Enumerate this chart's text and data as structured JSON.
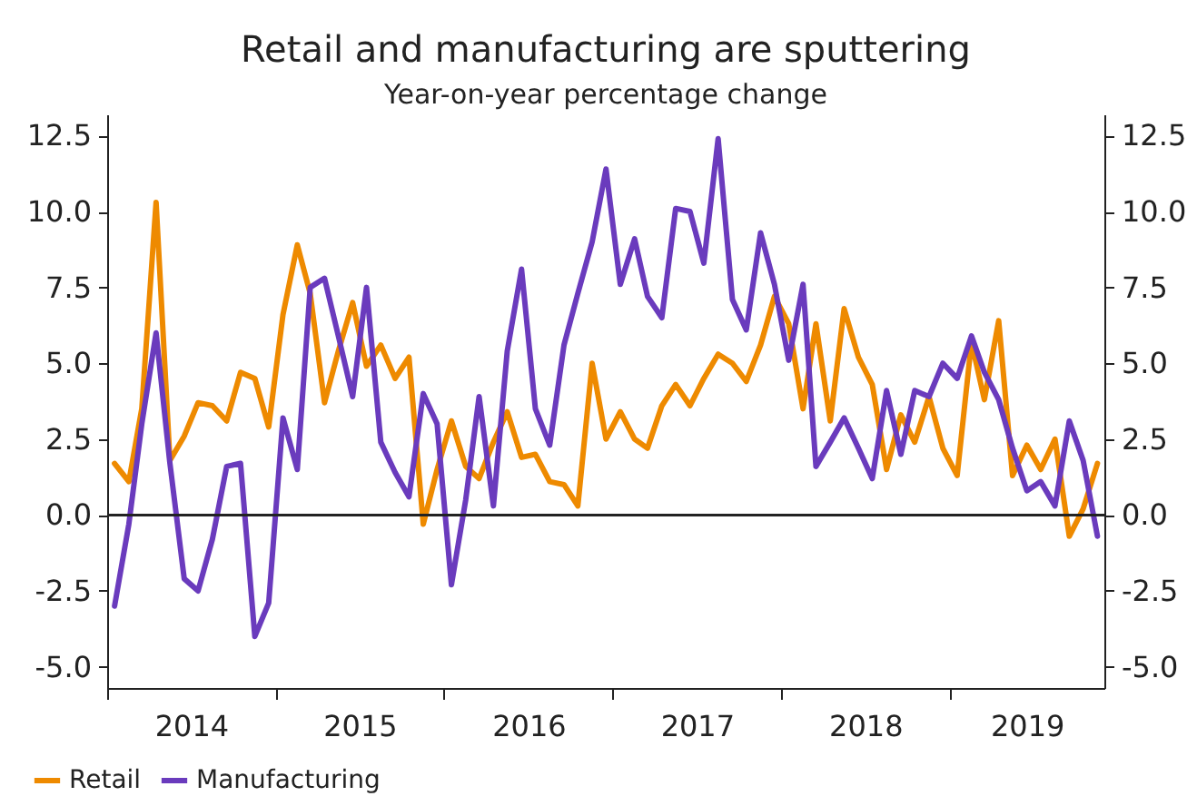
{
  "chart_data": {
    "type": "line",
    "title": "Retail and manufacturing are sputtering",
    "subtitle": "Year-on-year percentage change",
    "x": [
      "2014-01",
      "2014-02",
      "2014-03",
      "2014-04",
      "2014-05",
      "2014-06",
      "2014-07",
      "2014-08",
      "2014-09",
      "2014-10",
      "2014-11",
      "2014-12",
      "2015-01",
      "2015-02",
      "2015-03",
      "2015-04",
      "2015-05",
      "2015-06",
      "2015-07",
      "2015-08",
      "2015-09",
      "2015-10",
      "2015-11",
      "2015-12",
      "2016-01",
      "2016-02",
      "2016-03",
      "2016-04",
      "2016-05",
      "2016-06",
      "2016-07",
      "2016-08",
      "2016-09",
      "2016-10",
      "2016-11",
      "2016-12",
      "2017-01",
      "2017-02",
      "2017-03",
      "2017-04",
      "2017-05",
      "2017-06",
      "2017-07",
      "2017-08",
      "2017-09",
      "2017-10",
      "2017-11",
      "2017-12",
      "2018-01",
      "2018-02",
      "2018-03",
      "2018-04",
      "2018-05",
      "2018-06",
      "2018-07",
      "2018-08",
      "2018-09",
      "2018-10",
      "2018-11",
      "2018-12",
      "2019-01",
      "2019-02",
      "2019-03",
      "2019-04",
      "2019-05",
      "2019-06",
      "2019-07",
      "2019-08",
      "2019-09",
      "2019-10",
      "2019-11"
    ],
    "series": [
      {
        "name": "Retail",
        "color": "#ee8a00",
        "values": [
          1.7,
          1.1,
          3.5,
          10.3,
          1.8,
          2.6,
          3.7,
          3.6,
          3.1,
          4.7,
          4.5,
          2.9,
          6.6,
          8.9,
          7.3,
          3.7,
          5.4,
          7.0,
          4.9,
          5.6,
          4.5,
          5.2,
          -0.3,
          1.5,
          3.1,
          1.6,
          1.2,
          2.4,
          3.4,
          1.9,
          2.0,
          1.1,
          1.0,
          0.3,
          5.0,
          2.5,
          3.4,
          2.5,
          2.2,
          3.6,
          4.3,
          3.6,
          4.5,
          5.3,
          5.0,
          4.4,
          5.6,
          7.2,
          6.3,
          3.5,
          6.3,
          3.1,
          6.8,
          5.2,
          4.3,
          1.5,
          3.3,
          2.4,
          3.9,
          2.2,
          1.3,
          5.7,
          3.8,
          6.4,
          1.3,
          2.3,
          1.5,
          2.5,
          -0.7,
          0.2,
          1.7
        ]
      },
      {
        "name": "Manufacturing",
        "color": "#6a3bbd",
        "values": [
          -3.0,
          -0.3,
          3.0,
          6.0,
          1.7,
          -2.1,
          -2.5,
          -0.8,
          1.6,
          1.7,
          -4.0,
          -2.9,
          3.2,
          1.5,
          7.5,
          7.8,
          5.9,
          3.9,
          7.5,
          2.4,
          1.4,
          0.6,
          4.0,
          3.0,
          -2.3,
          0.5,
          3.9,
          0.3,
          5.4,
          8.1,
          3.5,
          2.3,
          5.6,
          7.3,
          9.0,
          11.4,
          7.6,
          9.1,
          7.2,
          6.5,
          10.1,
          10.0,
          8.3,
          12.4,
          7.1,
          6.1,
          9.3,
          7.6,
          5.1,
          7.6,
          1.6,
          2.4,
          3.2,
          2.2,
          1.2,
          4.1,
          2.0,
          4.1,
          3.9,
          5.0,
          4.5,
          5.9,
          4.7,
          3.8,
          2.2,
          0.8,
          1.1,
          0.3,
          3.1,
          1.8,
          -0.7
        ]
      }
    ],
    "xlim": [
      "2013-12-16",
      "2019-11-16"
    ],
    "xticks": [
      {
        "value": "2013-12-16",
        "label": null
      },
      {
        "value": "2014-06-16",
        "label": "2014"
      },
      {
        "value": "2014-12-16",
        "label": null
      },
      {
        "value": "2015-06-16",
        "label": "2015"
      },
      {
        "value": "2015-12-16",
        "label": null
      },
      {
        "value": "2016-06-16",
        "label": "2016"
      },
      {
        "value": "2016-12-16",
        "label": null
      },
      {
        "value": "2017-06-16",
        "label": "2017"
      },
      {
        "value": "2017-12-16",
        "label": null
      },
      {
        "value": "2018-06-16",
        "label": "2018"
      },
      {
        "value": "2018-12-16",
        "label": null
      },
      {
        "value": "2019-06-01",
        "label": "2019"
      }
    ],
    "ylim": [
      -5.7,
      13.2
    ],
    "yticks": [
      {
        "value": -5,
        "label": "-5.0"
      },
      -2.5,
      {
        "value": 0,
        "label": "0.0"
      },
      2.5,
      {
        "value": 5,
        "label": "5.0"
      },
      7.5,
      {
        "value": 10,
        "label": "10.0"
      },
      12.5
    ],
    "y2lim": [
      -5.7,
      13.2
    ],
    "y2ticks": [
      {
        "value": -5,
        "label": "-5.0"
      },
      -2.5,
      {
        "value": 0,
        "label": "0.0"
      },
      2.5,
      {
        "value": 5,
        "label": "5.0"
      },
      7.5,
      {
        "value": 10,
        "label": "10.0"
      },
      12.5
    ],
    "ref_lines": [
      {
        "axis": "y",
        "value": 0,
        "color": "#222222"
      }
    ],
    "legend": "bottom",
    "line_style": "solid"
  }
}
